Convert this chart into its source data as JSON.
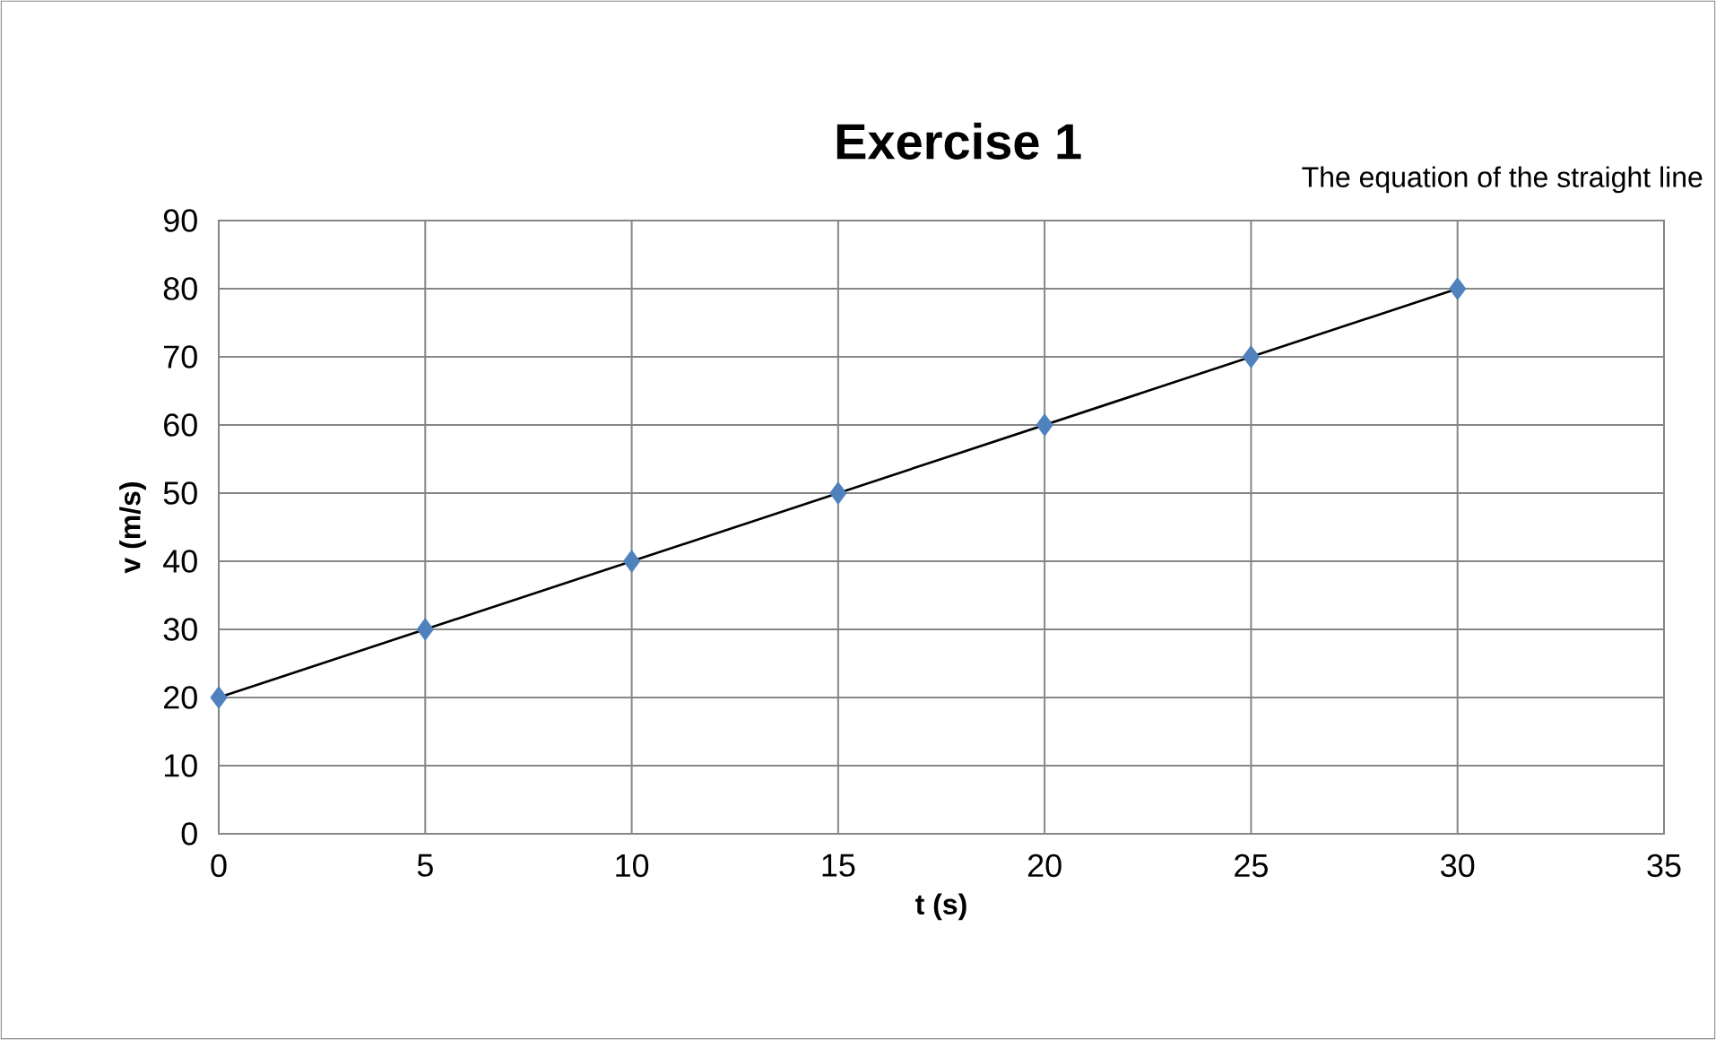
{
  "chart_data": {
    "type": "scatter",
    "title": "Exercise 1",
    "xlabel": "t (s)",
    "ylabel": "v (m/s)",
    "annotations": [
      "The equation of the straight line"
    ],
    "xlim": [
      0,
      35
    ],
    "ylim": [
      0,
      90
    ],
    "xticks": [
      0,
      5,
      10,
      15,
      20,
      25,
      30,
      35
    ],
    "yticks": [
      0,
      10,
      20,
      30,
      40,
      50,
      60,
      70,
      80,
      90
    ],
    "grid": true,
    "series": [
      {
        "color": "#4f81bd",
        "marker": "diamond",
        "x": [
          0,
          5,
          10,
          15,
          20,
          25,
          30
        ],
        "values": [
          20,
          30,
          40,
          50,
          60,
          70,
          80
        ]
      },
      {
        "type": "line",
        "color": "#000000",
        "marker": "none",
        "line_style": "solid",
        "x": [
          0,
          30
        ],
        "values": [
          20,
          80
        ]
      }
    ]
  }
}
